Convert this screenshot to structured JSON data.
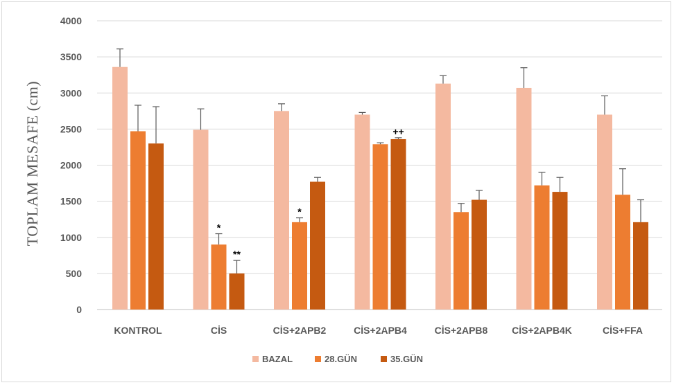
{
  "chart_data": {
    "type": "bar",
    "title": "",
    "xlabel": "",
    "ylabel": "TOPLAM MESAFE (cm)",
    "ylim": [
      0,
      4000
    ],
    "yticks": [
      0,
      500,
      1000,
      1500,
      2000,
      2500,
      3000,
      3500,
      4000
    ],
    "grid": true,
    "legend_position": "bottom",
    "categories": [
      "KONTROL",
      "CİS",
      "CİS+2APB2",
      "CİS+2APB4",
      "CİS+2APB8",
      "CİS+2APB4K",
      "CİS+FFA"
    ],
    "series": [
      {
        "name": "BAZAL",
        "color": "#f4b9a0",
        "values": [
          3360,
          2490,
          2750,
          2700,
          3130,
          3070,
          2700
        ],
        "errors": [
          250,
          290,
          100,
          30,
          110,
          280,
          260
        ]
      },
      {
        "name": "28.GÜN",
        "color": "#ed7d31",
        "values": [
          2470,
          900,
          1210,
          2290,
          1350,
          1720,
          1590
        ],
        "errors": [
          360,
          150,
          60,
          20,
          120,
          180,
          360
        ]
      },
      {
        "name": "35.GÜN",
        "color": "#c55a11",
        "values": [
          2300,
          500,
          1770,
          2360,
          1520,
          1630,
          1210
        ],
        "errors": [
          510,
          180,
          60,
          20,
          130,
          200,
          310
        ]
      }
    ],
    "annotations": [
      {
        "category": 1,
        "series": 1,
        "text": "*"
      },
      {
        "category": 1,
        "series": 2,
        "text": "**"
      },
      {
        "category": 2,
        "series": 1,
        "text": "*"
      },
      {
        "category": 3,
        "series": 2,
        "text": "++"
      }
    ]
  }
}
